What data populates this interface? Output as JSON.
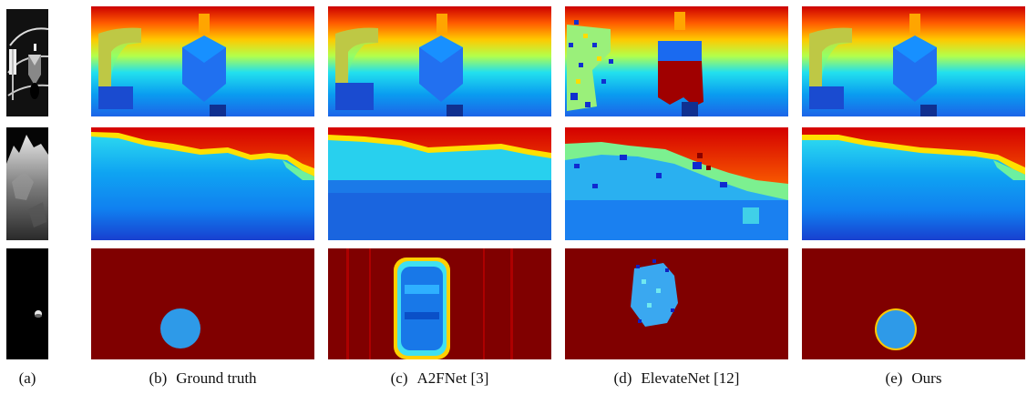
{
  "figure": {
    "columns": [
      {
        "label": "(a)",
        "title": ""
      },
      {
        "label": "(b)",
        "title": "Ground truth"
      },
      {
        "label": "(c)",
        "title": "A2FNet [3]"
      },
      {
        "label": "(d)",
        "title": "ElevateNet [12]"
      },
      {
        "label": "(e)",
        "title": "Ours"
      }
    ],
    "rows": [
      {
        "input": "spacecraft grayscale image"
      },
      {
        "input": "rocky terrain grayscale image"
      },
      {
        "input": "small moon on black background"
      }
    ],
    "colormap": "jet"
  }
}
